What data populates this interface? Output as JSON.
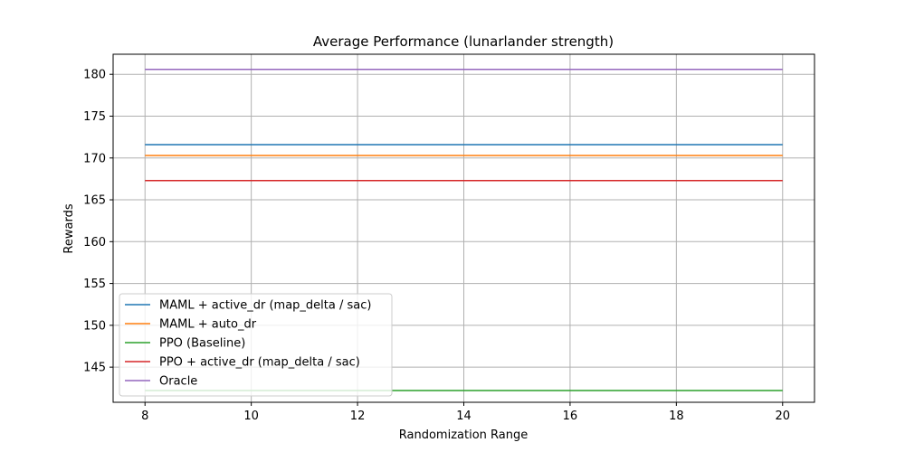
{
  "chart_data": {
    "type": "line",
    "title": "Average Performance (lunarlander strength)",
    "xlabel": "Randomization Range",
    "ylabel": "Rewards",
    "xlim": [
      7.4,
      20.6
    ],
    "ylim": [
      140.8,
      182.4
    ],
    "x_ticks": [
      8,
      10,
      12,
      14,
      16,
      18,
      20
    ],
    "y_ticks": [
      145,
      150,
      155,
      160,
      165,
      170,
      175,
      180
    ],
    "grid": true,
    "legend_position": "lower-left",
    "x": [
      8,
      20
    ],
    "series": [
      {
        "name": "MAML + active_dr (map_delta / sac)",
        "color": "#1f77b4",
        "values": [
          171.6,
          171.6
        ]
      },
      {
        "name": "MAML + auto_dr",
        "color": "#ff7f0e",
        "values": [
          170.3,
          170.3
        ]
      },
      {
        "name": "PPO (Baseline)",
        "color": "#2ca02c",
        "values": [
          142.2,
          142.2
        ]
      },
      {
        "name": "PPO + active_dr (map_delta / sac)",
        "color": "#d62728",
        "values": [
          167.3,
          167.3
        ]
      },
      {
        "name": "Oracle",
        "color": "#9467bd",
        "values": [
          180.6,
          180.6
        ]
      }
    ]
  }
}
